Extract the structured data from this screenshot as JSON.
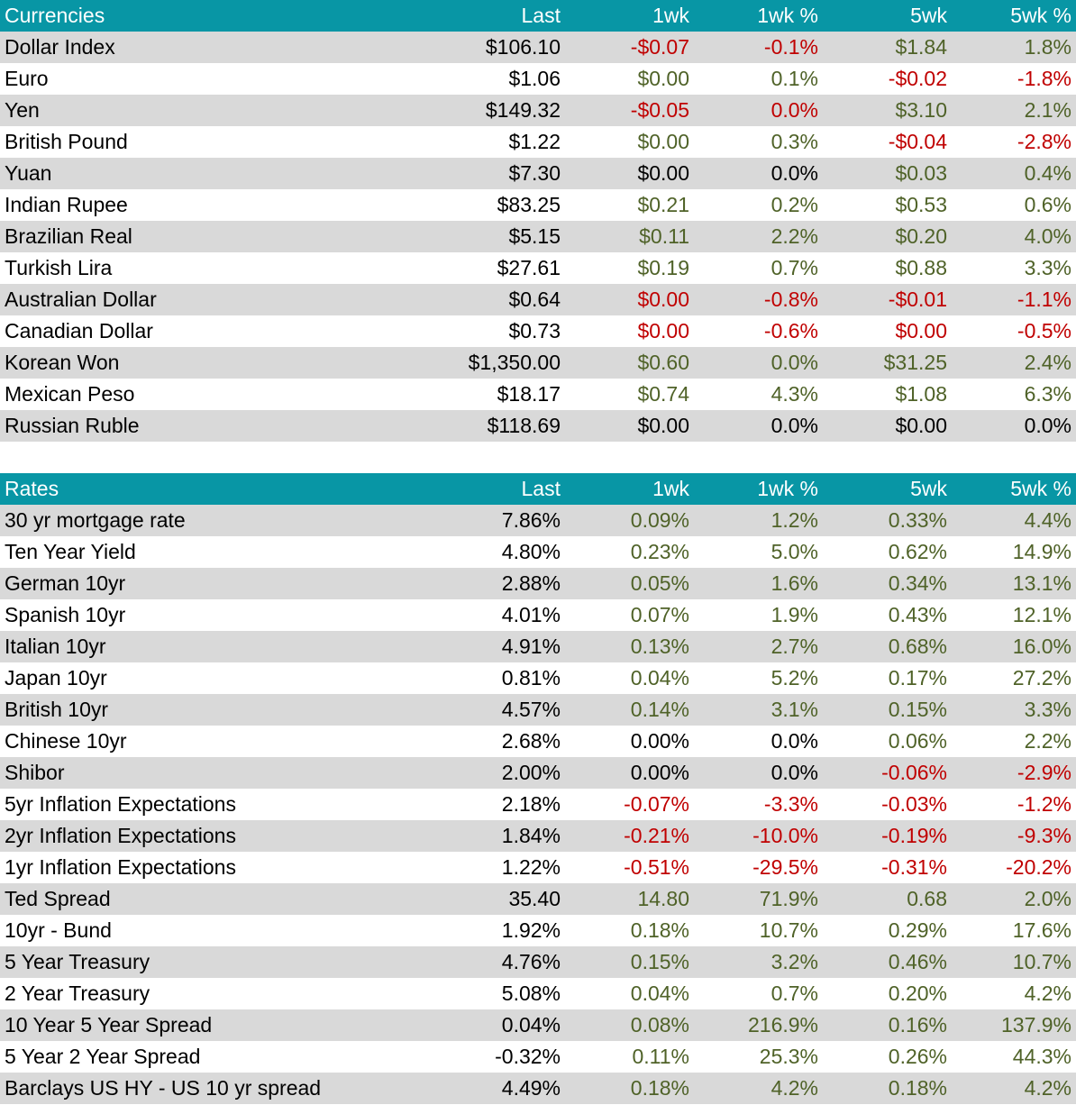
{
  "currencies": {
    "header": [
      "Currencies",
      "Last",
      "1wk",
      "1wk %",
      "5wk",
      "5wk %"
    ],
    "rows": [
      {
        "name": "Dollar Index",
        "vals": [
          "$106.10",
          "-$0.07",
          "-0.1%",
          "$1.84",
          "1.8%"
        ],
        "cls": [
          "neu",
          "neg",
          "neg",
          "pos",
          "pos"
        ]
      },
      {
        "name": "Euro",
        "vals": [
          "$1.06",
          "$0.00",
          "0.1%",
          "-$0.02",
          "-1.8%"
        ],
        "cls": [
          "neu",
          "pos",
          "pos",
          "neg",
          "neg"
        ]
      },
      {
        "name": "Yen",
        "vals": [
          "$149.32",
          "-$0.05",
          "0.0%",
          "$3.10",
          "2.1%"
        ],
        "cls": [
          "neu",
          "neg",
          "neg",
          "pos",
          "pos"
        ]
      },
      {
        "name": "British Pound",
        "vals": [
          "$1.22",
          "$0.00",
          "0.3%",
          "-$0.04",
          "-2.8%"
        ],
        "cls": [
          "neu",
          "pos",
          "pos",
          "neg",
          "neg"
        ]
      },
      {
        "name": "Yuan",
        "vals": [
          "$7.30",
          "$0.00",
          "0.0%",
          "$0.03",
          "0.4%"
        ],
        "cls": [
          "neu",
          "neu",
          "neu",
          "pos",
          "pos"
        ]
      },
      {
        "name": "Indian Rupee",
        "vals": [
          "$83.25",
          "$0.21",
          "0.2%",
          "$0.53",
          "0.6%"
        ],
        "cls": [
          "neu",
          "pos",
          "pos",
          "pos",
          "pos"
        ]
      },
      {
        "name": "Brazilian Real",
        "vals": [
          "$5.15",
          "$0.11",
          "2.2%",
          "$0.20",
          "4.0%"
        ],
        "cls": [
          "neu",
          "pos",
          "pos",
          "pos",
          "pos"
        ]
      },
      {
        "name": "Turkish Lira",
        "vals": [
          "$27.61",
          "$0.19",
          "0.7%",
          "$0.88",
          "3.3%"
        ],
        "cls": [
          "neu",
          "pos",
          "pos",
          "pos",
          "pos"
        ]
      },
      {
        "name": "Australian Dollar",
        "vals": [
          "$0.64",
          "$0.00",
          "-0.8%",
          "-$0.01",
          "-1.1%"
        ],
        "cls": [
          "neu",
          "neg",
          "neg",
          "neg",
          "neg"
        ]
      },
      {
        "name": "Canadian Dollar",
        "vals": [
          "$0.73",
          "$0.00",
          "-0.6%",
          "$0.00",
          "-0.5%"
        ],
        "cls": [
          "neu",
          "neg",
          "neg",
          "neg",
          "neg"
        ]
      },
      {
        "name": "Korean Won",
        "vals": [
          "$1,350.00",
          "$0.60",
          "0.0%",
          "$31.25",
          "2.4%"
        ],
        "cls": [
          "neu",
          "pos",
          "pos",
          "pos",
          "pos"
        ]
      },
      {
        "name": "Mexican Peso",
        "vals": [
          "$18.17",
          "$0.74",
          "4.3%",
          "$1.08",
          "6.3%"
        ],
        "cls": [
          "neu",
          "pos",
          "pos",
          "pos",
          "pos"
        ]
      },
      {
        "name": "Russian Ruble",
        "vals": [
          "$118.69",
          "$0.00",
          "0.0%",
          "$0.00",
          "0.0%"
        ],
        "cls": [
          "neu",
          "neu",
          "neu",
          "neu",
          "neu"
        ]
      }
    ]
  },
  "rates": {
    "header": [
      "Rates",
      "Last",
      "1wk",
      "1wk %",
      "5wk",
      "5wk %"
    ],
    "rows": [
      {
        "name": "30 yr mortgage rate",
        "vals": [
          "7.86%",
          "0.09%",
          "1.2%",
          "0.33%",
          "4.4%"
        ],
        "cls": [
          "neu",
          "pos",
          "pos",
          "pos",
          "pos"
        ]
      },
      {
        "name": "Ten Year Yield",
        "vals": [
          "4.80%",
          "0.23%",
          "5.0%",
          "0.62%",
          "14.9%"
        ],
        "cls": [
          "neu",
          "pos",
          "pos",
          "pos",
          "pos"
        ]
      },
      {
        "name": "German 10yr",
        "vals": [
          "2.88%",
          "0.05%",
          "1.6%",
          "0.34%",
          "13.1%"
        ],
        "cls": [
          "neu",
          "pos",
          "pos",
          "pos",
          "pos"
        ]
      },
      {
        "name": "Spanish 10yr",
        "vals": [
          "4.01%",
          "0.07%",
          "1.9%",
          "0.43%",
          "12.1%"
        ],
        "cls": [
          "neu",
          "pos",
          "pos",
          "pos",
          "pos"
        ]
      },
      {
        "name": "Italian 10yr",
        "vals": [
          "4.91%",
          "0.13%",
          "2.7%",
          "0.68%",
          "16.0%"
        ],
        "cls": [
          "neu",
          "pos",
          "pos",
          "pos",
          "pos"
        ]
      },
      {
        "name": "Japan 10yr",
        "vals": [
          "0.81%",
          "0.04%",
          "5.2%",
          "0.17%",
          "27.2%"
        ],
        "cls": [
          "neu",
          "pos",
          "pos",
          "pos",
          "pos"
        ]
      },
      {
        "name": "British 10yr",
        "vals": [
          "4.57%",
          "0.14%",
          "3.1%",
          "0.15%",
          "3.3%"
        ],
        "cls": [
          "neu",
          "pos",
          "pos",
          "pos",
          "pos"
        ]
      },
      {
        "name": "Chinese 10yr",
        "vals": [
          "2.68%",
          "0.00%",
          "0.0%",
          "0.06%",
          "2.2%"
        ],
        "cls": [
          "neu",
          "neu",
          "neu",
          "pos",
          "pos"
        ]
      },
      {
        "name": "Shibor",
        "vals": [
          "2.00%",
          "0.00%",
          "0.0%",
          "-0.06%",
          "-2.9%"
        ],
        "cls": [
          "neu",
          "neu",
          "neu",
          "neg",
          "neg"
        ]
      },
      {
        "name": "5yr Inflation Expectations",
        "vals": [
          "2.18%",
          "-0.07%",
          "-3.3%",
          "-0.03%",
          "-1.2%"
        ],
        "cls": [
          "neu",
          "neg",
          "neg",
          "neg",
          "neg"
        ]
      },
      {
        "name": "2yr Inflation Expectations",
        "vals": [
          "1.84%",
          "-0.21%",
          "-10.0%",
          "-0.19%",
          "-9.3%"
        ],
        "cls": [
          "neu",
          "neg",
          "neg",
          "neg",
          "neg"
        ]
      },
      {
        "name": "1yr Inflation Expectations",
        "vals": [
          "1.22%",
          "-0.51%",
          "-29.5%",
          "-0.31%",
          "-20.2%"
        ],
        "cls": [
          "neu",
          "neg",
          "neg",
          "neg",
          "neg"
        ]
      },
      {
        "name": "Ted Spread",
        "vals": [
          "35.40",
          "14.80",
          "71.9%",
          "0.68",
          "2.0%"
        ],
        "cls": [
          "neu",
          "pos",
          "pos",
          "pos",
          "pos"
        ]
      },
      {
        "name": "10yr - Bund",
        "vals": [
          "1.92%",
          "0.18%",
          "10.7%",
          "0.29%",
          "17.6%"
        ],
        "cls": [
          "neu",
          "pos",
          "pos",
          "pos",
          "pos"
        ]
      },
      {
        "name": "5 Year Treasury",
        "vals": [
          "4.76%",
          "0.15%",
          "3.2%",
          "0.46%",
          "10.7%"
        ],
        "cls": [
          "neu",
          "pos",
          "pos",
          "pos",
          "pos"
        ]
      },
      {
        "name": "2 Year Treasury",
        "vals": [
          "5.08%",
          "0.04%",
          "0.7%",
          "0.20%",
          "4.2%"
        ],
        "cls": [
          "neu",
          "pos",
          "pos",
          "pos",
          "pos"
        ]
      },
      {
        "name": "10 Year 5 Year Spread",
        "vals": [
          "0.04%",
          "0.08%",
          "216.9%",
          "0.16%",
          "137.9%"
        ],
        "cls": [
          "neu",
          "pos",
          "pos",
          "pos",
          "pos"
        ]
      },
      {
        "name": "5 Year 2 Year Spread",
        "vals": [
          "-0.32%",
          "0.11%",
          "25.3%",
          "0.26%",
          "44.3%"
        ],
        "cls": [
          "neu",
          "pos",
          "pos",
          "pos",
          "pos"
        ]
      },
      {
        "name": "Barclays US HY - US 10 yr spread",
        "vals": [
          "4.49%",
          "0.18%",
          "4.2%",
          "0.18%",
          "4.2%"
        ],
        "cls": [
          "neu",
          "pos",
          "pos",
          "pos",
          "pos"
        ]
      }
    ]
  },
  "colors": {
    "header_bg": "#0896a5",
    "row_shade": "#d9d9d9",
    "positive": "#4f6228",
    "negative": "#c00000"
  }
}
